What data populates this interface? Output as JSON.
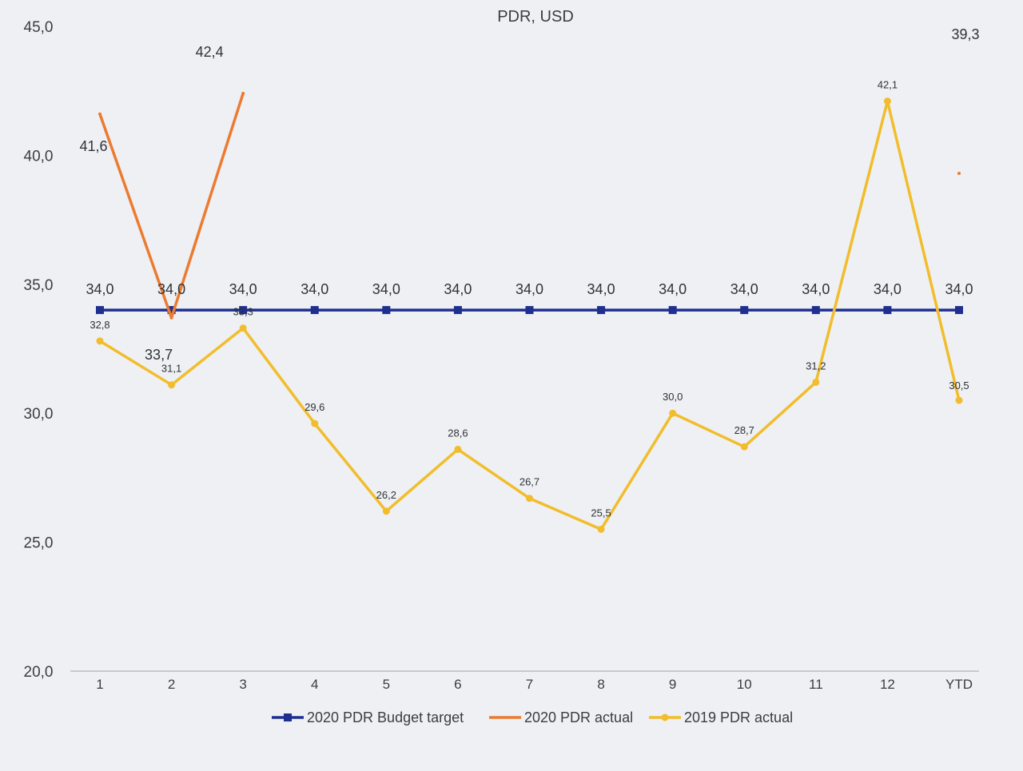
{
  "chart_data": {
    "type": "line",
    "title": "PDR, USD",
    "xlabel": "",
    "ylabel": "",
    "categories": [
      "1",
      "2",
      "3",
      "4",
      "5",
      "6",
      "7",
      "8",
      "9",
      "10",
      "11",
      "12",
      "YTD"
    ],
    "ylim": [
      20.0,
      45.0
    ],
    "yticks": [
      "20,0",
      "25,0",
      "30,0",
      "35,0",
      "40,0",
      "45,0"
    ],
    "grid": false,
    "legend_position": "bottom",
    "series": [
      {
        "name": "2020 PDR Budget target",
        "color": "#1f2f8f",
        "marker": "square",
        "values": [
          34.0,
          34.0,
          34.0,
          34.0,
          34.0,
          34.0,
          34.0,
          34.0,
          34.0,
          34.0,
          34.0,
          34.0,
          34.0
        ],
        "labels": [
          "34,0",
          "34,0",
          "34,0",
          "34,0",
          "34,0",
          "34,0",
          "34,0",
          "34,0",
          "34,0",
          "34,0",
          "34,0",
          "34,0",
          "34,0"
        ]
      },
      {
        "name": "2020 PDR actual",
        "color": "#ec7b31",
        "marker": "none",
        "values": [
          41.6,
          33.7,
          42.4,
          null,
          null,
          null,
          null,
          null,
          null,
          null,
          null,
          null,
          39.3
        ],
        "labels": [
          "41,6",
          "33,7",
          "42,4",
          "",
          "",
          "",
          "",
          "",
          "",
          "",
          "",
          "",
          "39,3"
        ]
      },
      {
        "name": "2019 PDR actual",
        "color": "#f2bd2c",
        "marker": "circle",
        "values": [
          32.8,
          31.1,
          33.3,
          29.6,
          26.2,
          28.6,
          26.7,
          25.5,
          30.0,
          28.7,
          31.2,
          42.1,
          30.5
        ],
        "labels": [
          "32,8",
          "31,1",
          "33,3",
          "29,6",
          "26,2",
          "28,6",
          "26,7",
          "25,5",
          "30,0",
          "28,7",
          "31,2",
          "42,1",
          "30,5"
        ]
      }
    ]
  }
}
